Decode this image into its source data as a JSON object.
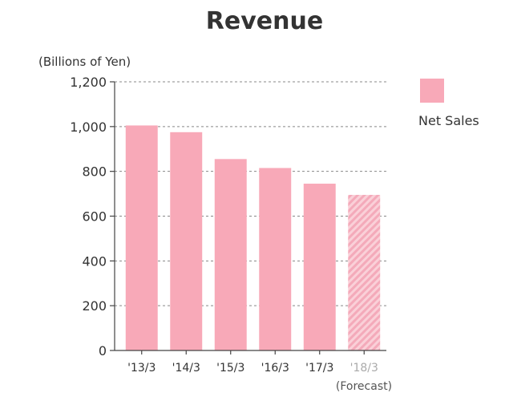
{
  "colors": {
    "bar": "#F8A9B8",
    "forecast_stripe_a": "#FAD0D8",
    "forecast_stripe_b": "#F4AABA",
    "text": "#333333",
    "grid": "#888888"
  },
  "chart_data": {
    "type": "bar",
    "title": "Revenue",
    "ylabel": "(Billions of Yen)",
    "xlabel": "",
    "categories": [
      "'13/3",
      "'14/3",
      "'15/3",
      "'16/3",
      "'17/3",
      "'18/3"
    ],
    "forecast_note": "(Forecast)",
    "series": [
      {
        "name": "Net Sales",
        "values": [
          1005,
          975,
          855,
          815,
          745,
          695
        ],
        "forecast_flags": [
          false,
          false,
          false,
          false,
          false,
          true
        ]
      }
    ],
    "ylim": [
      0,
      1200
    ],
    "yticks": [
      0,
      200,
      400,
      600,
      800,
      1000,
      1200
    ],
    "ytick_labels": [
      "0",
      "200",
      "400",
      "600",
      "800",
      "1,000",
      "1,200"
    ],
    "grid": true,
    "legend": {
      "placement": "top-right",
      "entries": [
        "Net Sales"
      ]
    }
  }
}
